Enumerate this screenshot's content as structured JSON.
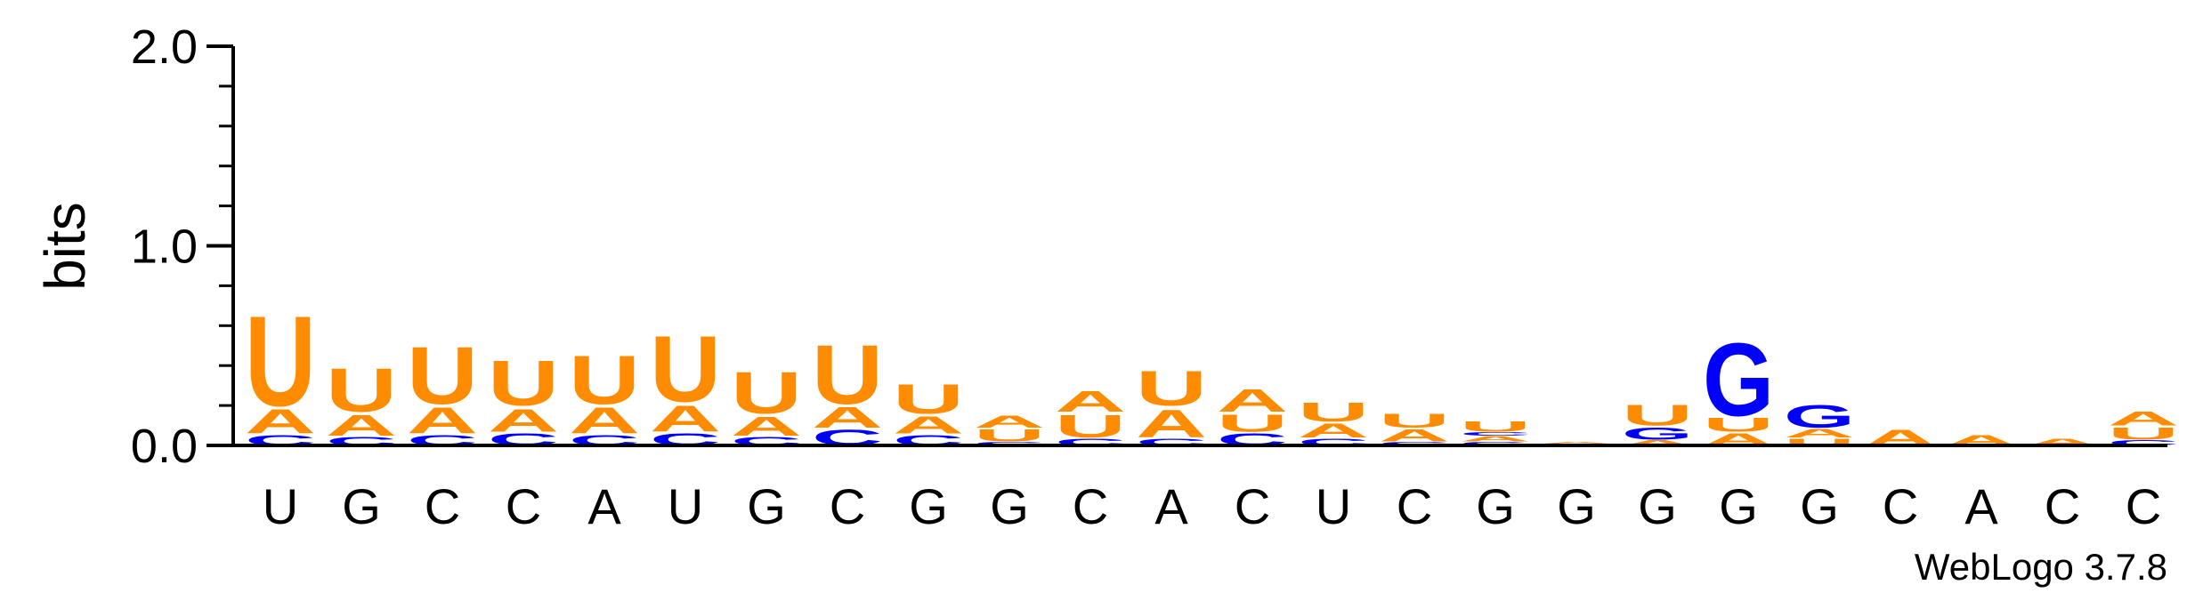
{
  "colors": {
    "U": "#ff8c00",
    "A": "#ff8c00",
    "C": "#0000ff",
    "G": "#0000ff",
    "axis": "#000000"
  },
  "chart_data": {
    "type": "sequence-logo",
    "ylabel": "bits",
    "ylim": [
      0,
      2.0
    ],
    "y_ticks": [
      "0.0",
      "1.0",
      "2.0"
    ],
    "credit": "WebLogo 3.7.8",
    "sequence": [
      "U",
      "G",
      "C",
      "C",
      "A",
      "U",
      "G",
      "C",
      "G",
      "G",
      "C",
      "A",
      "C",
      "U",
      "C",
      "G",
      "G",
      "G",
      "G",
      "G",
      "C",
      "A",
      "C",
      "C"
    ],
    "positions": [
      {
        "stack": [
          {
            "letter": "C",
            "bits": 0.06
          },
          {
            "letter": "A",
            "bits": 0.14
          },
          {
            "letter": "U",
            "bits": 0.52
          }
        ]
      },
      {
        "stack": [
          {
            "letter": "C",
            "bits": 0.05
          },
          {
            "letter": "A",
            "bits": 0.12
          },
          {
            "letter": "U",
            "bits": 0.25
          }
        ]
      },
      {
        "stack": [
          {
            "letter": "C",
            "bits": 0.06
          },
          {
            "letter": "A",
            "bits": 0.15
          },
          {
            "letter": "U",
            "bits": 0.33
          }
        ]
      },
      {
        "stack": [
          {
            "letter": "C",
            "bits": 0.07
          },
          {
            "letter": "A",
            "bits": 0.13
          },
          {
            "letter": "U",
            "bits": 0.26
          }
        ]
      },
      {
        "stack": [
          {
            "letter": "C",
            "bits": 0.06
          },
          {
            "letter": "A",
            "bits": 0.15
          },
          {
            "letter": "U",
            "bits": 0.28
          }
        ]
      },
      {
        "stack": [
          {
            "letter": "C",
            "bits": 0.07
          },
          {
            "letter": "A",
            "bits": 0.15
          },
          {
            "letter": "U",
            "bits": 0.38
          }
        ]
      },
      {
        "stack": [
          {
            "letter": "C",
            "bits": 0.05
          },
          {
            "letter": "A",
            "bits": 0.11
          },
          {
            "letter": "U",
            "bits": 0.24
          }
        ]
      },
      {
        "stack": [
          {
            "letter": "C",
            "bits": 0.09
          },
          {
            "letter": "A",
            "bits": 0.12
          },
          {
            "letter": "U",
            "bits": 0.34
          }
        ]
      },
      {
        "stack": [
          {
            "letter": "C",
            "bits": 0.06
          },
          {
            "letter": "A",
            "bits": 0.1
          },
          {
            "letter": "U",
            "bits": 0.17
          }
        ]
      },
      {
        "stack": [
          {
            "letter": "C",
            "bits": 0.02
          },
          {
            "letter": "U",
            "bits": 0.07
          },
          {
            "letter": "A",
            "bits": 0.07
          }
        ]
      },
      {
        "stack": [
          {
            "letter": "C",
            "bits": 0.04
          },
          {
            "letter": "U",
            "bits": 0.13
          },
          {
            "letter": "A",
            "bits": 0.12
          }
        ]
      },
      {
        "stack": [
          {
            "letter": "C",
            "bits": 0.04
          },
          {
            "letter": "A",
            "bits": 0.16
          },
          {
            "letter": "U",
            "bits": 0.2
          }
        ]
      },
      {
        "stack": [
          {
            "letter": "C",
            "bits": 0.07
          },
          {
            "letter": "U",
            "bits": 0.1
          },
          {
            "letter": "A",
            "bits": 0.13
          }
        ]
      },
      {
        "stack": [
          {
            "letter": "C",
            "bits": 0.04
          },
          {
            "letter": "A",
            "bits": 0.08
          },
          {
            "letter": "U",
            "bits": 0.11
          }
        ]
      },
      {
        "stack": [
          {
            "letter": "C",
            "bits": 0.02
          },
          {
            "letter": "A",
            "bits": 0.07
          },
          {
            "letter": "U",
            "bits": 0.08
          }
        ]
      },
      {
        "stack": [
          {
            "letter": "G",
            "bits": 0.02
          },
          {
            "letter": "A",
            "bits": 0.03
          },
          {
            "letter": "C",
            "bits": 0.02
          },
          {
            "letter": "U",
            "bits": 0.06
          }
        ]
      },
      {
        "stack": [
          {
            "letter": "C",
            "bits": 0.01
          },
          {
            "letter": "A",
            "bits": 0.01
          }
        ]
      },
      {
        "stack": [
          {
            "letter": "A",
            "bits": 0.03
          },
          {
            "letter": "G",
            "bits": 0.07
          },
          {
            "letter": "U",
            "bits": 0.12
          }
        ]
      },
      {
        "stack": [
          {
            "letter": "A",
            "bits": 0.07
          },
          {
            "letter": "U",
            "bits": 0.08
          },
          {
            "letter": "G",
            "bits": 0.42
          }
        ]
      },
      {
        "stack": [
          {
            "letter": "U",
            "bits": 0.04
          },
          {
            "letter": "A",
            "bits": 0.05
          },
          {
            "letter": "G",
            "bits": 0.13
          }
        ]
      },
      {
        "stack": [
          {
            "letter": "A",
            "bits": 0.09
          }
        ]
      },
      {
        "stack": [
          {
            "letter": "A",
            "bits": 0.06
          }
        ]
      },
      {
        "stack": [
          {
            "letter": "A",
            "bits": 0.04
          }
        ]
      },
      {
        "stack": [
          {
            "letter": "C",
            "bits": 0.03
          },
          {
            "letter": "U",
            "bits": 0.07
          },
          {
            "letter": "A",
            "bits": 0.08
          }
        ]
      }
    ]
  }
}
